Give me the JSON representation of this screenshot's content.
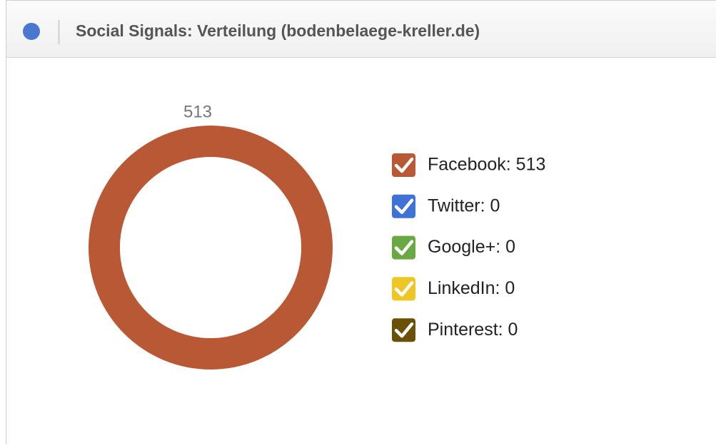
{
  "chart_data": {
    "type": "donut",
    "title": "Social Signals: Verteilung (bodenbelaege-kreller.de)",
    "categories": [
      "Facebook: 513",
      "Twitter: 0",
      "Google+: 0",
      "LinkedIn: 0",
      "Pinterest: 0"
    ],
    "values": [
      513,
      0,
      0,
      0,
      0
    ],
    "colors": [
      "#b95835",
      "#3f72d6",
      "#6aa842",
      "#ecc725",
      "#6b5009"
    ],
    "legend": "right"
  }
}
